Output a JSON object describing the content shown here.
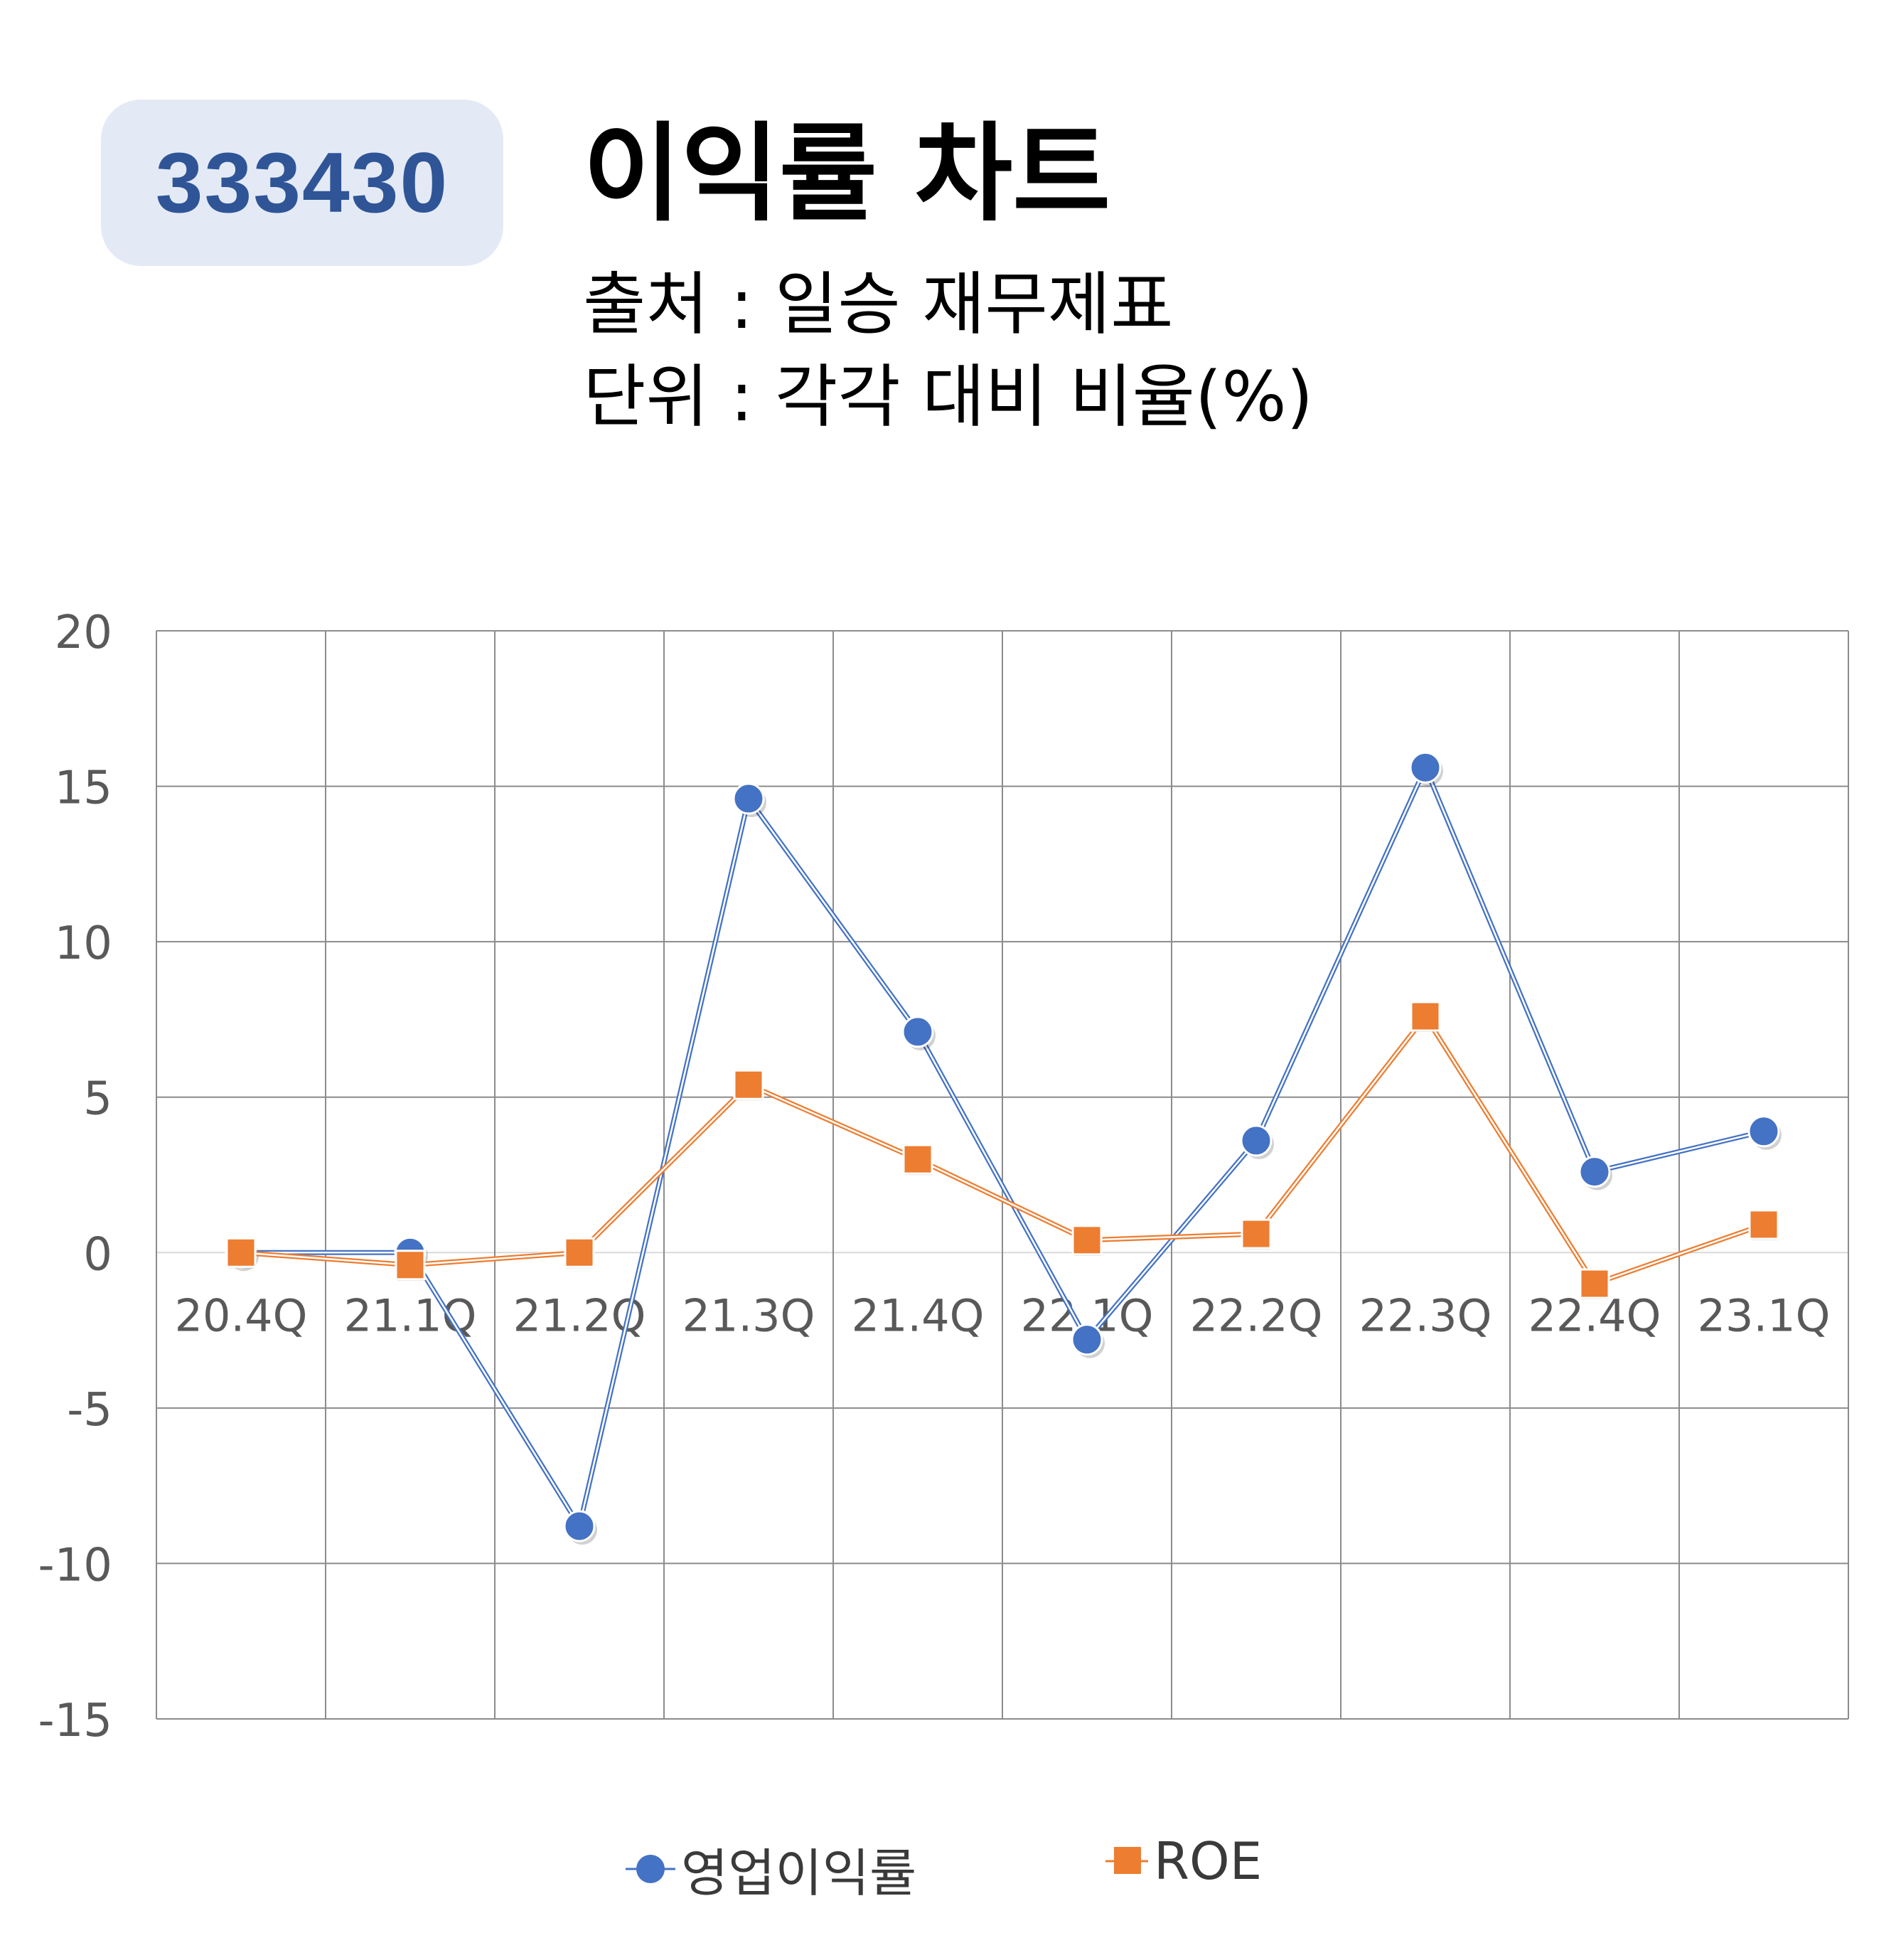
{
  "badge": {
    "code": "333430"
  },
  "header": {
    "title": "이익률 차트",
    "source": "출처 : 일승 재무제표",
    "unit": "단위 : 각각 대비 비율(%)"
  },
  "colors": {
    "series1": "#4472c4",
    "series2": "#ed7d31",
    "grid": "#8c8c8c",
    "tick_text": "#595959",
    "badge_bg": "#e4eaf5",
    "badge_text": "#2f5597"
  },
  "chart_data": {
    "type": "line",
    "title": "",
    "xlabel": "",
    "ylabel": "",
    "ylim": [
      -15,
      20
    ],
    "yticks": [
      "20",
      "15",
      "10",
      "5",
      "0",
      "-5",
      "-10",
      "-15"
    ],
    "ytick_values": [
      20,
      15,
      10,
      5,
      0,
      -5,
      -10,
      -15
    ],
    "grid": true,
    "legend_position": "bottom",
    "categories": [
      "20.4Q",
      "21.1Q",
      "21.2Q",
      "21.3Q",
      "21.4Q",
      "22.1Q",
      "22.2Q",
      "22.3Q",
      "22.4Q",
      "23.1Q"
    ],
    "series": [
      {
        "name": "영업이익률",
        "marker": "circle",
        "color": "#4472c4",
        "values": [
          0.0,
          0.0,
          -8.8,
          14.6,
          7.1,
          -2.8,
          3.6,
          15.6,
          2.6,
          3.9
        ]
      },
      {
        "name": "ROE",
        "marker": "square",
        "color": "#ed7d31",
        "values": [
          0.0,
          -0.4,
          0.0,
          5.4,
          3.0,
          0.4,
          0.6,
          7.6,
          -1.0,
          0.9
        ]
      }
    ]
  }
}
